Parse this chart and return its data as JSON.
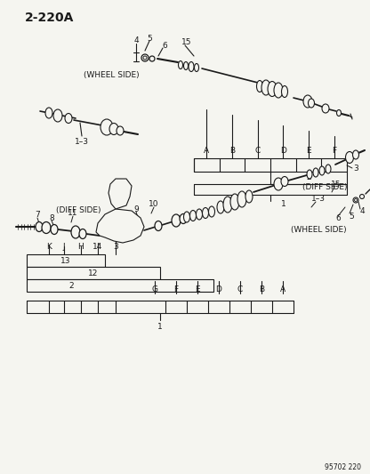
{
  "title": "2-220A",
  "bg_color": "#f5f5f0",
  "line_color": "#1a1a1a",
  "text_color": "#1a1a1a",
  "part_number": "95702 220",
  "top_wheel_side": "(WHEEL SIDE)",
  "top_diff_side": "(DIFF SIDE)",
  "bottom_diff_side": "(DIFF SIDE)",
  "bottom_wheel_side": "(WHEEL SIDE)",
  "top_labels_nums": [
    "4",
    "5",
    "6",
    "15"
  ],
  "top_labels_alpha": [
    "A",
    "B",
    "C",
    "D",
    "E",
    "F"
  ],
  "top_bracket_labels": [
    "1",
    "2",
    "3"
  ],
  "bottom_left_nums": [
    "7",
    "8",
    "11",
    "9",
    "10"
  ],
  "bottom_left_bracket": [
    "K",
    "J",
    "H",
    "14",
    "3",
    "13",
    "12",
    "2"
  ],
  "bottom_right_alpha": [
    "G",
    "F",
    "E",
    "D",
    "C",
    "B",
    "A"
  ],
  "bottom_right_nums": [
    "15",
    "1-3",
    "6",
    "5",
    "4"
  ],
  "label_1": "1"
}
